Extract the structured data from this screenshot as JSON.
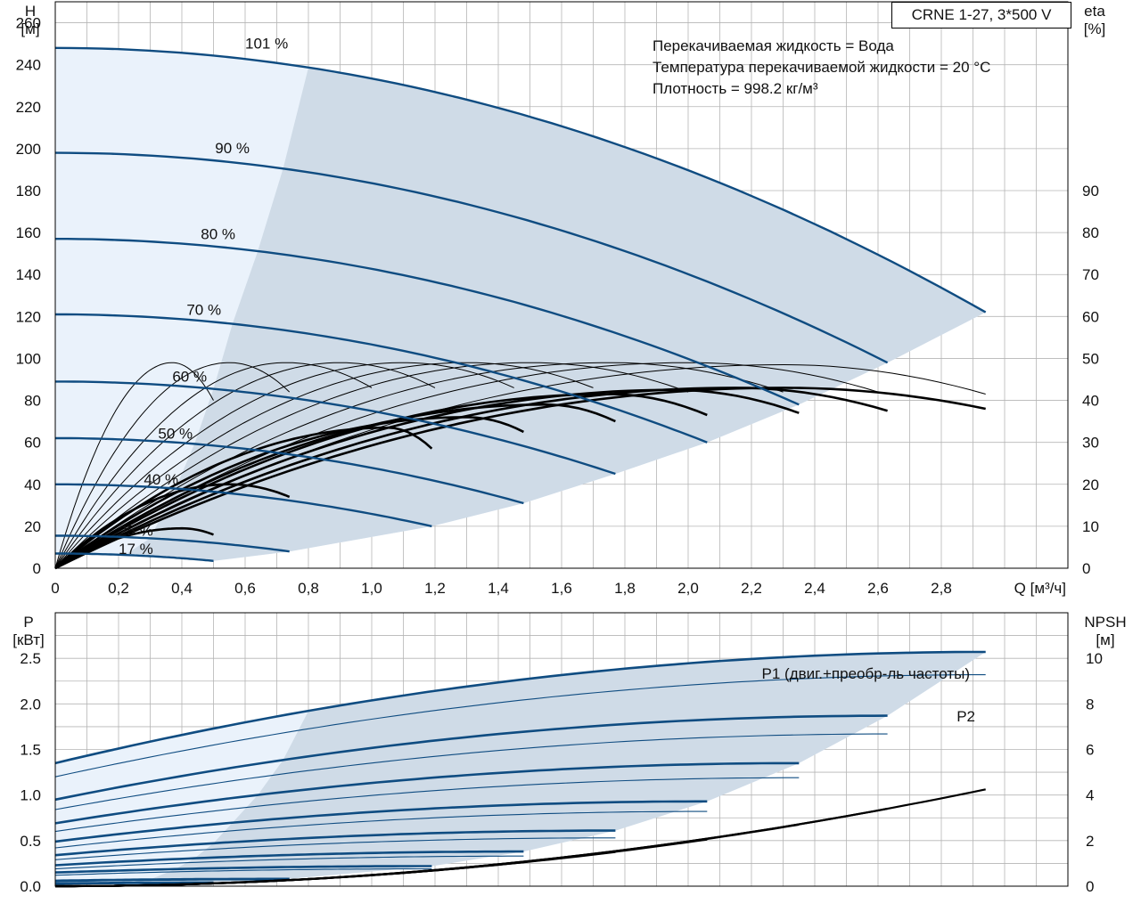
{
  "model": "CRNE 1-27, 3*500 V",
  "fluid_info": [
    "Перекачиваемая жидкость = Вода",
    "Температура перекачиваемой жидкости = 20 °C",
    "Плотность = 998.2 кг/м³"
  ],
  "colors": {
    "curve": "#0f4c81",
    "area": "#cfdbe7",
    "area_light": "#eaf2fb",
    "eta": "#000000",
    "grid": "#b5b5b5"
  },
  "chart_data": [
    {
      "type": "line",
      "xlabel": "Q [м³/ч]",
      "ylabel": "H\n[м]",
      "y2label": "eta\n[%]",
      "xlim": [
        0,
        3.2
      ],
      "ylim": [
        0,
        270
      ],
      "y2lim": [
        0,
        135
      ],
      "xticks": [
        "0",
        "0,2",
        "0,4",
        "0,6",
        "0,8",
        "1,0",
        "1,2",
        "1,4",
        "1,6",
        "1,8",
        "2,0",
        "2,2",
        "2,4",
        "2,6",
        "2,8"
      ],
      "yticks": [
        0,
        20,
        40,
        60,
        80,
        100,
        120,
        140,
        160,
        180,
        200,
        220,
        240,
        260
      ],
      "y2ticks": [
        0,
        10,
        20,
        30,
        40,
        50,
        60,
        70,
        80,
        90
      ],
      "grid": true,
      "head_curves": [
        {
          "name": "101 %",
          "h0": 248,
          "qmax": 2.94,
          "hend": 122
        },
        {
          "name": "90 %",
          "h0": 198,
          "qmax": 2.63,
          "hend": 98
        },
        {
          "name": "80 %",
          "h0": 157,
          "qmax": 2.35,
          "hend": 78
        },
        {
          "name": "70 %",
          "h0": 121,
          "qmax": 2.06,
          "hend": 60
        },
        {
          "name": "60 %",
          "h0": 89,
          "qmax": 1.77,
          "hend": 45
        },
        {
          "name": "50 %",
          "h0": 62,
          "qmax": 1.48,
          "hend": 31
        },
        {
          "name": "40 %",
          "h0": 40,
          "qmax": 1.19,
          "hend": 20
        },
        {
          "name": "25 %",
          "h0": 15.5,
          "qmax": 0.74,
          "hend": 8
        },
        {
          "name": "17 %",
          "h0": 7,
          "qmax": 0.5,
          "hend": 3.5
        }
      ],
      "eta_curves": [
        {
          "qpk": 0.37,
          "pk": 49,
          "qend": 0.5,
          "end": 40
        },
        {
          "qpk": 0.55,
          "pk": 49,
          "qend": 0.74,
          "end": 42
        },
        {
          "qpk": 0.73,
          "pk": 49,
          "qend": 1.0,
          "end": 43
        },
        {
          "qpk": 0.9,
          "pk": 49,
          "qend": 1.2,
          "end": 43
        },
        {
          "qpk": 1.1,
          "pk": 49,
          "qend": 1.45,
          "end": 43
        },
        {
          "qpk": 1.3,
          "pk": 49,
          "qend": 1.7,
          "end": 43
        },
        {
          "qpk": 1.5,
          "pk": 49,
          "qend": 2.0,
          "end": 42
        },
        {
          "qpk": 1.75,
          "pk": 49,
          "qend": 2.3,
          "end": 42
        },
        {
          "qpk": 2.0,
          "pk": 49,
          "qend": 2.6,
          "end": 42
        },
        {
          "qpk": 2.3,
          "pk": 48.5,
          "qend": 2.94,
          "end": 41.5
        }
      ],
      "eta_bold_curves": [
        {
          "qpk": 0.4,
          "pk": 9.5,
          "qend": 0.5,
          "end": 8
        },
        {
          "qpk": 0.55,
          "pk": 20,
          "qend": 0.74,
          "end": 17
        },
        {
          "qpk": 1.05,
          "pk": 33.5,
          "qend": 1.19,
          "end": 28.5
        },
        {
          "qpk": 1.3,
          "pk": 36,
          "qend": 1.48,
          "end": 32.5
        },
        {
          "qpk": 1.55,
          "pk": 39,
          "qend": 1.77,
          "end": 35
        },
        {
          "qpk": 1.75,
          "pk": 41.5,
          "qend": 2.06,
          "end": 36.5
        },
        {
          "qpk": 1.95,
          "pk": 42.5,
          "qend": 2.35,
          "end": 37
        },
        {
          "qpk": 2.15,
          "pk": 43,
          "qend": 2.63,
          "end": 37.5
        },
        {
          "qpk": 2.3,
          "pk": 43,
          "qend": 2.94,
          "end": 38
        }
      ]
    },
    {
      "type": "line",
      "xlabel": "",
      "ylabel": "P\n[кВт]",
      "y2label": "NPSH\n[м]",
      "xlim": [
        0,
        3.2
      ],
      "ylim": [
        0,
        3.0
      ],
      "y2lim": [
        0,
        12
      ],
      "yticks": [
        "0.0",
        "0.5",
        "1.0",
        "1.5",
        "2.0",
        "2.5"
      ],
      "y2ticks": [
        0,
        2,
        4,
        6,
        8,
        10
      ],
      "grid": true,
      "series_labels": [
        "P1 (двиг.+преобр-ль частоты)",
        "P2"
      ],
      "p1_curves": [
        {
          "p0": 1.35,
          "qmax": 2.94,
          "pend": 2.57
        },
        {
          "p0": 0.95,
          "qmax": 2.63,
          "pend": 1.87
        },
        {
          "p0": 0.69,
          "qmax": 2.35,
          "pend": 1.35
        },
        {
          "p0": 0.49,
          "qmax": 2.06,
          "pend": 0.93
        },
        {
          "p0": 0.34,
          "qmax": 1.77,
          "pend": 0.61
        },
        {
          "p0": 0.23,
          "qmax": 1.48,
          "pend": 0.38
        },
        {
          "p0": 0.15,
          "qmax": 1.19,
          "pend": 0.22
        },
        {
          "p0": 0.06,
          "qmax": 0.74,
          "pend": 0.08
        },
        {
          "p0": 0.03,
          "qmax": 0.5,
          "pend": 0.04
        }
      ],
      "p2_curves": [
        {
          "p0": 1.2,
          "qmax": 2.94,
          "pend": 2.32
        },
        {
          "p0": 0.84,
          "qmax": 2.63,
          "pend": 1.67
        },
        {
          "p0": 0.6,
          "qmax": 2.35,
          "pend": 1.19
        },
        {
          "p0": 0.42,
          "qmax": 2.06,
          "pend": 0.82
        },
        {
          "p0": 0.29,
          "qmax": 1.77,
          "pend": 0.53
        },
        {
          "p0": 0.19,
          "qmax": 1.48,
          "pend": 0.33
        },
        {
          "p0": 0.12,
          "qmax": 1.19,
          "pend": 0.19
        },
        {
          "p0": 0.05,
          "qmax": 0.74,
          "pend": 0.07
        },
        {
          "p0": 0.02,
          "qmax": 0.5,
          "pend": 0.03
        }
      ],
      "npsh_curves": [
        {
          "qmax": 2.94,
          "end": 4.25
        },
        {
          "qmax": 2.63,
          "end": 3.4
        },
        {
          "qmax": 2.35,
          "end": 2.7
        },
        {
          "qmax": 2.06,
          "end": 2.05
        },
        {
          "qmax": 1.77,
          "end": 1.5
        },
        {
          "qmax": 1.48,
          "end": 1.05
        },
        {
          "qmax": 1.19,
          "end": 0.68
        },
        {
          "qmax": 0.74,
          "end": 0.28
        },
        {
          "qmax": 0.5,
          "end": 0.13
        }
      ]
    }
  ]
}
